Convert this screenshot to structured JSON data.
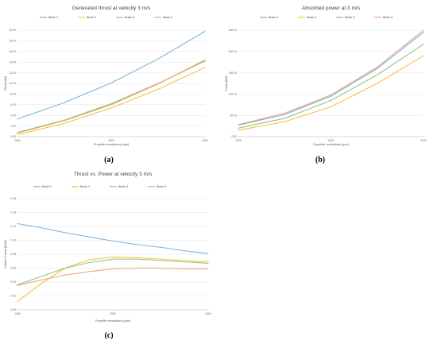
{
  "colors": {
    "blade0": "#7fb2d6",
    "blade3": "#f5c342",
    "blade5": "#93c47d",
    "blade6": "#f0a177"
  },
  "chart_data": [
    {
      "type": "line",
      "subfigure_label": "(a)",
      "title": "Generated thrust at velocity 3 m/s",
      "xlabel": "Propeller revolutions [rpm]",
      "ylabel": "Thrust [kN]",
      "xlim": [
        1000,
        2000
      ],
      "ylim": [
        0,
        20
      ],
      "x_ticks": [
        "1000",
        "1500",
        "2000"
      ],
      "y_ticks": [
        "0.00",
        "2.00",
        "4.00",
        "6.00",
        "8.00",
        "10.00",
        "12.00",
        "14.00",
        "16.00",
        "18.00",
        "20.00"
      ],
      "grid": true,
      "legend_position": "top",
      "x": [
        1000,
        1250,
        1500,
        1750,
        2000
      ],
      "series": [
        {
          "name": "Blade 0",
          "color": "#7fb2d6",
          "values": [
            3.3,
            6.4,
            10.1,
            14.6,
            19.8
          ]
        },
        {
          "name": "Blade 3",
          "color": "#f5c342",
          "values": [
            0.4,
            2.5,
            5.4,
            8.9,
            13.0
          ]
        },
        {
          "name": "Blade 5",
          "color": "#93c47d",
          "values": [
            0.8,
            3.1,
            6.2,
            10.0,
            14.2
          ]
        },
        {
          "name": "Blade 6",
          "color": "#f0a177",
          "values": [
            0.7,
            3.0,
            6.0,
            9.9,
            14.4
          ]
        }
      ]
    },
    {
      "type": "line",
      "subfigure_label": "(b)",
      "title": "Absorbed power at 3 m/s",
      "xlabel": "Propeller revolutions [rpm]",
      "ylabel": "Power [kW]",
      "xlim": [
        1000,
        2000
      ],
      "ylim": [
        0,
        250
      ],
      "x_ticks": [
        "1000",
        "1500",
        "2000"
      ],
      "y_ticks": [
        "0.00",
        "50.00",
        "100.00",
        "150.00",
        "200.00",
        "250.00"
      ],
      "grid": true,
      "legend_position": "top",
      "x": [
        1000,
        1250,
        1500,
        1750,
        2000
      ],
      "series": [
        {
          "name": "Blade 0",
          "color": "#7fb2d6",
          "values": [
            27,
            52,
            95,
            160,
            245
          ]
        },
        {
          "name": "Blade 3",
          "color": "#f5c342",
          "values": [
            15,
            35,
            70,
            125,
            190
          ]
        },
        {
          "name": "Blade 5",
          "color": "#93c47d",
          "values": [
            20,
            43,
            85,
            145,
            217
          ]
        },
        {
          "name": "Blade 6",
          "color": "#f0a177",
          "values": [
            28,
            55,
            98,
            163,
            250
          ]
        }
      ]
    },
    {
      "type": "line",
      "subfigure_label": "(c)",
      "title": "Thrust vs. Power at velocity 3 m/s",
      "xlabel": "Propeller revolutions [rpm]",
      "ylabel": "Thrust / Power [N/W]",
      "xlim": [
        1000,
        2000
      ],
      "ylim": [
        0,
        0.16
      ],
      "x_ticks": [
        "1000",
        "1500",
        "2000"
      ],
      "y_ticks": [
        "0.00",
        "0.02",
        "0.04",
        "0.06",
        "0.08",
        "0.10",
        "0.12",
        "0.14",
        "0.16"
      ],
      "grid": true,
      "legend_position": "top",
      "x": [
        1000,
        1125,
        1250,
        1375,
        1500,
        1625,
        1750,
        1875,
        2000
      ],
      "series": [
        {
          "name": "Blade 0",
          "color": "#7fb2d6",
          "values": [
            0.124,
            0.118,
            0.111,
            0.105,
            0.099,
            0.094,
            0.09,
            0.085,
            0.081
          ]
        },
        {
          "name": "Blade 3",
          "color": "#f5c342",
          "values": [
            0.012,
            0.038,
            0.06,
            0.072,
            0.076,
            0.075,
            0.073,
            0.071,
            0.069
          ]
        },
        {
          "name": "Blade 5",
          "color": "#93c47d",
          "values": [
            0.036,
            0.048,
            0.06,
            0.068,
            0.073,
            0.073,
            0.071,
            0.069,
            0.067
          ]
        },
        {
          "name": "Blade 6",
          "color": "#f0a177",
          "values": [
            0.035,
            0.043,
            0.05,
            0.055,
            0.059,
            0.06,
            0.06,
            0.059,
            0.059
          ]
        }
      ]
    }
  ]
}
